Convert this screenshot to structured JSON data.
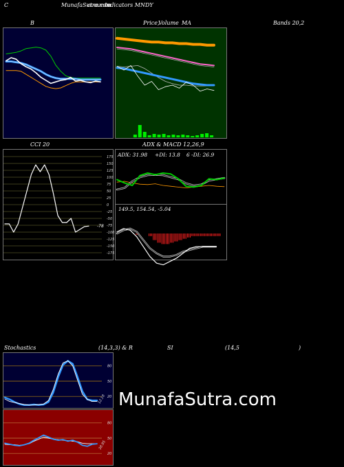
{
  "header": {
    "c": "C",
    "site": "MunafaSutra.com",
    "title": "Indicators MNDY",
    "site_overlap": "common"
  },
  "titles": {
    "bb_left": "B",
    "price": "Price,",
    "volume": "Volume",
    "ma": "MA",
    "bands": "Bands 20,2",
    "cci": "CCI 20",
    "adx_macd": "ADX  & MACD 12,26,9",
    "stoch_left": "Stochastics",
    "stoch_params": "(14,3,3) & R",
    "rsi": "SI",
    "rsi_params": "(14,5",
    "rsi_close": ")"
  },
  "adx": {
    "adx_text": "ADX: 31.98",
    "plus_di_text": "+DI: 13.8",
    "minus_di_text": "6  -DI: 26.9"
  },
  "macd": {
    "text": "149.5,  154.54,  -5.04"
  },
  "watermark": "MunafaSutra.com",
  "colors": {
    "bg": "#000000",
    "bb_panel": "#000033",
    "price_panel": "#003300",
    "cci_panel": "#000000",
    "stoch_panel": "#000033",
    "rsi_panel": "#8b0000",
    "orange": "#ff9900",
    "blue": "#3399ff",
    "green": "#00cc00",
    "pink": "#ff66cc",
    "red": "#ff2020"
  },
  "chart_data": [
    {
      "name": "bollinger",
      "type": "line",
      "series": [
        {
          "values": [
            75,
            76,
            77,
            79,
            82,
            83,
            84,
            83,
            80,
            72,
            60,
            52,
            46,
            44,
            43,
            43,
            43,
            43,
            43,
            43
          ]
        },
        {
          "values": [
            65,
            65,
            64,
            63,
            61,
            58,
            55,
            52,
            48,
            45,
            43,
            42,
            42,
            42,
            42,
            41,
            41,
            41,
            41,
            41
          ]
        },
        {
          "values": [
            53,
            53,
            53,
            52,
            48,
            44,
            40,
            36,
            32,
            30,
            29,
            30,
            33,
            36,
            38,
            38,
            38,
            38,
            38,
            38
          ]
        },
        {
          "values": [
            66,
            70,
            68,
            62,
            58,
            55,
            50,
            44,
            40,
            36,
            38,
            40,
            41,
            44,
            39,
            40,
            38,
            37,
            39,
            38
          ]
        }
      ]
    },
    {
      "name": "price_ma",
      "type": "line",
      "series": [
        {
          "values": [
            92,
            91,
            90,
            89,
            88,
            87,
            87,
            86,
            86,
            85,
            85,
            84,
            84,
            83,
            83
          ]
        },
        {
          "values": [
            80,
            79,
            78,
            76,
            74,
            72,
            70,
            68,
            66,
            64,
            62,
            60,
            58,
            57,
            56
          ]
        },
        {
          "values": [
            55,
            54,
            55,
            56,
            52,
            46,
            40,
            35,
            32,
            30,
            30,
            29,
            29,
            29,
            29
          ]
        },
        {
          "values": [
            53,
            52,
            50,
            48,
            46,
            44,
            42,
            40,
            38,
            36,
            34,
            32,
            31,
            30,
            30
          ]
        },
        {
          "values": [
            55,
            50,
            56,
            42,
            30,
            35,
            24,
            28,
            30,
            26,
            34,
            30,
            22,
            25,
            23
          ]
        },
        {
          "values": [
            0,
            0,
            0,
            4,
            18,
            8,
            3,
            5,
            4,
            5,
            3,
            4,
            3,
            4,
            3,
            2,
            3,
            5,
            6,
            3
          ]
        }
      ]
    },
    {
      "name": "cci",
      "type": "line",
      "yticks": [
        175,
        150,
        125,
        100,
        75,
        50,
        25,
        0,
        -25,
        -50,
        -75,
        -100,
        -125,
        -150,
        -175
      ],
      "ytick_labels": [
        "175",
        "150",
        "125",
        "100",
        "75",
        "50",
        "25",
        "0",
        "-25",
        "-50",
        "-75",
        "-100",
        "-125",
        "-150",
        "-175"
      ],
      "ylim": [
        -185,
        185
      ],
      "last_value": -78,
      "last_label": "-78",
      "values": [
        -70,
        -70,
        -100,
        -70,
        -10,
        50,
        110,
        145,
        120,
        145,
        110,
        40,
        -40,
        -65,
        -65,
        -50,
        -100,
        -90,
        -80,
        -78
      ]
    },
    {
      "name": "adx",
      "type": "line",
      "series": [
        {
          "values": [
            48,
            50,
            46,
            43,
            42,
            44,
            40,
            38,
            36,
            34,
            36,
            38,
            40,
            38,
            37
          ]
        },
        {
          "values": [
            30,
            34,
            50,
            60,
            65,
            66,
            65,
            60,
            55,
            45,
            40,
            42,
            52,
            55,
            58
          ]
        },
        {
          "values": [
            54,
            46,
            40,
            64,
            70,
            66,
            70,
            68,
            56,
            38,
            36,
            40,
            56,
            54,
            58
          ]
        }
      ]
    },
    {
      "name": "macd",
      "type": "line",
      "series": [
        {
          "values": [
            0,
            2,
            3,
            1,
            -4,
            -9,
            -12,
            -14,
            -14,
            -13,
            -11,
            -10,
            -9,
            -8,
            -8,
            -8
          ]
        },
        {
          "values": [
            1,
            3,
            2,
            -2,
            -8,
            -14,
            -18,
            -19,
            -17,
            -15,
            -12,
            -9,
            -8,
            -8,
            -8,
            -8
          ]
        },
        {
          "values": [
            -1,
            0,
            0,
            -2,
            -5,
            -7,
            -8,
            -8,
            -7,
            -6,
            -5,
            -4,
            -3,
            -2,
            -2,
            -2,
            -2,
            -2,
            -2,
            -2
          ]
        }
      ]
    },
    {
      "name": "stochastics",
      "type": "line",
      "yticks": [
        80,
        50,
        20
      ],
      "ytick_labels": [
        "80",
        "50",
        "20"
      ],
      "ylim": [
        0,
        100
      ],
      "last_label": "12.18",
      "series": [
        {
          "values": [
            18,
            14,
            9,
            5,
            3,
            3,
            4,
            3,
            4,
            9,
            28,
            58,
            82,
            90,
            84,
            58,
            30,
            14,
            12,
            12
          ]
        },
        {
          "values": [
            15,
            10,
            8,
            6,
            4,
            3,
            3,
            4,
            5,
            12,
            34,
            64,
            86,
            90,
            80,
            52,
            24,
            14,
            10,
            10
          ]
        }
      ]
    },
    {
      "name": "rsi",
      "type": "line",
      "yticks": [
        80,
        50,
        20
      ],
      "ytick_labels": [
        "80",
        "50",
        "20"
      ],
      "ylim": [
        0,
        100
      ],
      "last_label": "38.95",
      "series": [
        {
          "values": [
            38,
            37,
            37,
            36,
            37,
            39,
            44,
            48,
            52,
            50,
            48,
            47,
            46,
            45,
            44,
            43,
            40,
            39,
            39,
            39
          ]
        },
        {
          "values": [
            40,
            38,
            36,
            35,
            37,
            40,
            46,
            51,
            56,
            52,
            48,
            46,
            47,
            44,
            46,
            42,
            36,
            34,
            38,
            39
          ]
        }
      ]
    }
  ]
}
